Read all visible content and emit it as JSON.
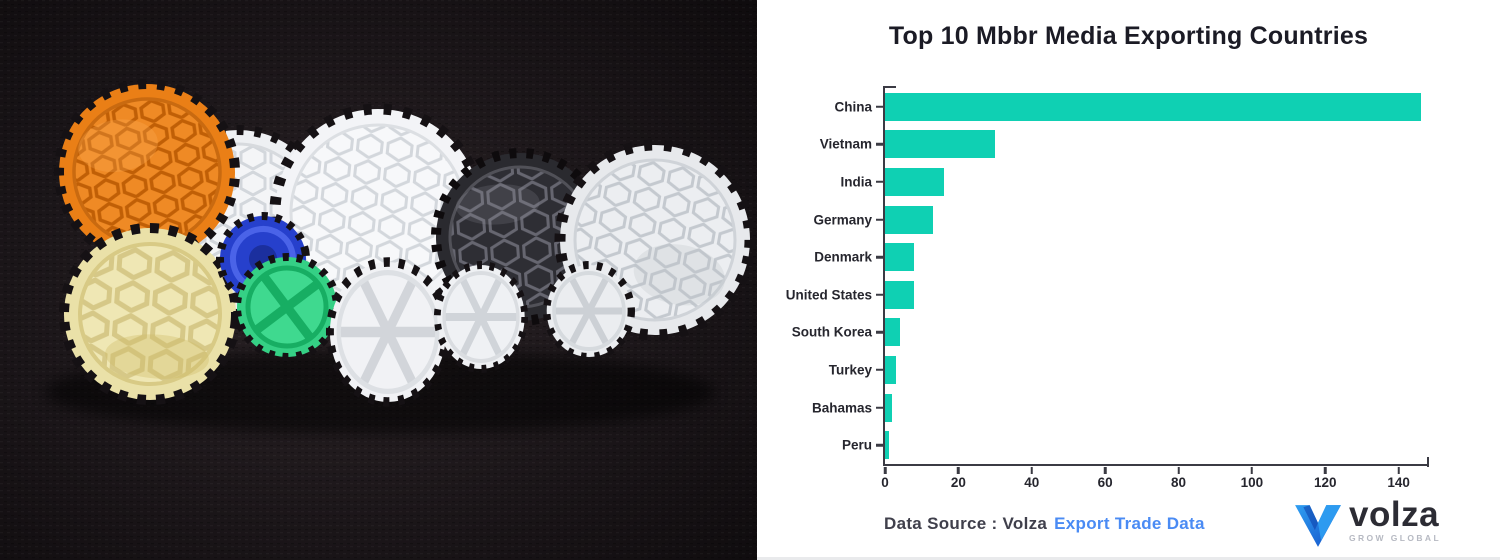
{
  "chart_data": {
    "type": "bar",
    "orientation": "horizontal",
    "title": "Top 10 Mbbr Media Exporting Countries",
    "categories": [
      "China",
      "Vietnam",
      "India",
      "Germany",
      "Denmark",
      "United States",
      "South Korea",
      "Turkey",
      "Bahamas",
      "Peru"
    ],
    "values": [
      146,
      30,
      16,
      13,
      8,
      8,
      4,
      3,
      2,
      1
    ],
    "xlabel": "",
    "ylabel": "",
    "xlim": [
      0,
      148
    ],
    "xticks": [
      0,
      20,
      40,
      60,
      80,
      100,
      120,
      140
    ],
    "grid": false,
    "legend": false,
    "bar_color": "#0fd0b3",
    "axis_color": "#3b3b44",
    "label_color": "#26262e"
  },
  "footer": {
    "source_prefix": "Data Source : Volza",
    "source_link": "Export Trade Data",
    "link_color": "#4a8bf4"
  },
  "logo": {
    "name": "volza",
    "tagline": "GROW GLOBAL",
    "mark_color": "#1f6fe0"
  }
}
